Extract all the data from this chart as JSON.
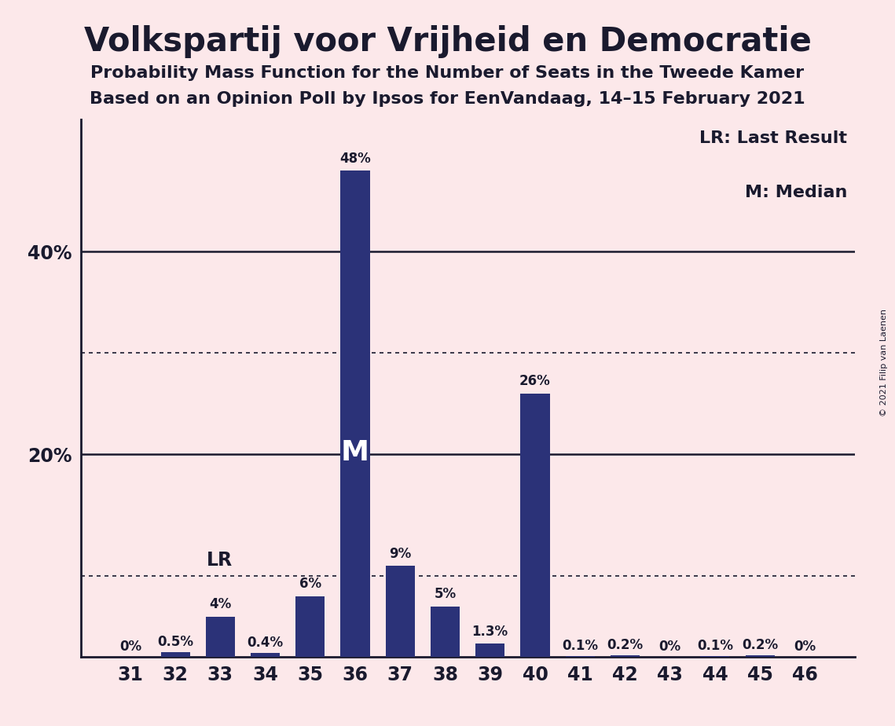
{
  "title": "Volkspartij voor Vrijheid en Democratie",
  "subtitle1": "Probability Mass Function for the Number of Seats in the Tweede Kamer",
  "subtitle2": "Based on an Opinion Poll by Ipsos for EenVandaag, 14–15 February 2021",
  "copyright": "© 2021 Filip van Laenen",
  "legend_lr": "LR: Last Result",
  "legend_m": "M: Median",
  "seats": [
    31,
    32,
    33,
    34,
    35,
    36,
    37,
    38,
    39,
    40,
    41,
    42,
    43,
    44,
    45,
    46
  ],
  "probabilities": [
    0.0,
    0.5,
    4.0,
    0.4,
    6.0,
    48.0,
    9.0,
    5.0,
    1.3,
    26.0,
    0.1,
    0.2,
    0.0,
    0.1,
    0.2,
    0.0
  ],
  "labels": [
    "0%",
    "0.5%",
    "4%",
    "0.4%",
    "6%",
    "48%",
    "9%",
    "5%",
    "1.3%",
    "26%",
    "0.1%",
    "0.2%",
    "0%",
    "0.1%",
    "0.2%",
    "0%"
  ],
  "bar_color": "#2b3278",
  "background_color": "#fce8ea",
  "text_color": "#1a1a2e",
  "median_seat": 36,
  "lr_seat": 33,
  "lr_value": 8.0,
  "solid_grid_lines": [
    20.0,
    40.0
  ],
  "solid_ytick_labels": {
    "20.0": "20%",
    "40.0": "40%"
  },
  "dotted_grid_lines": [
    30.0
  ],
  "lr_line_value": 8.0,
  "ylim": [
    0,
    53
  ]
}
